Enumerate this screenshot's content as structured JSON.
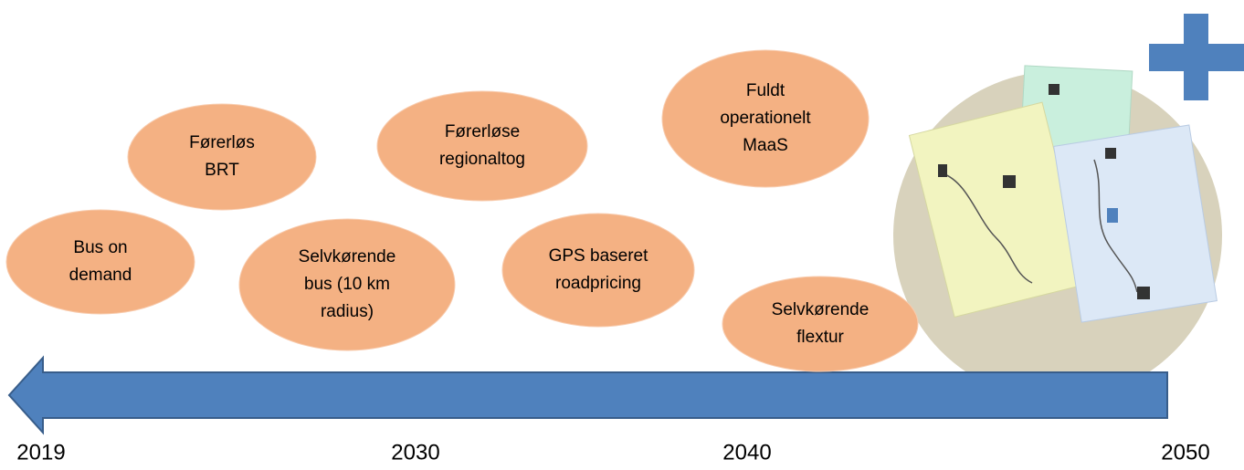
{
  "milestones": [
    {
      "lines": [
        "Bus on",
        "demand"
      ]
    },
    {
      "lines": [
        "Førerløs",
        "BRT"
      ]
    },
    {
      "lines": [
        "Selvkørende",
        "bus (10 km",
        "radius)"
      ]
    },
    {
      "lines": [
        "Førerløse",
        "regionaltog"
      ]
    },
    {
      "lines": [
        "GPS baseret",
        "roadpricing"
      ]
    },
    {
      "lines": [
        "Fuldt",
        "operationelt",
        "MaaS"
      ]
    },
    {
      "lines": [
        "Selvkørende",
        "flextur"
      ]
    }
  ],
  "timeline": {
    "labels": [
      "2019",
      "2030",
      "2040",
      "2050"
    ]
  }
}
